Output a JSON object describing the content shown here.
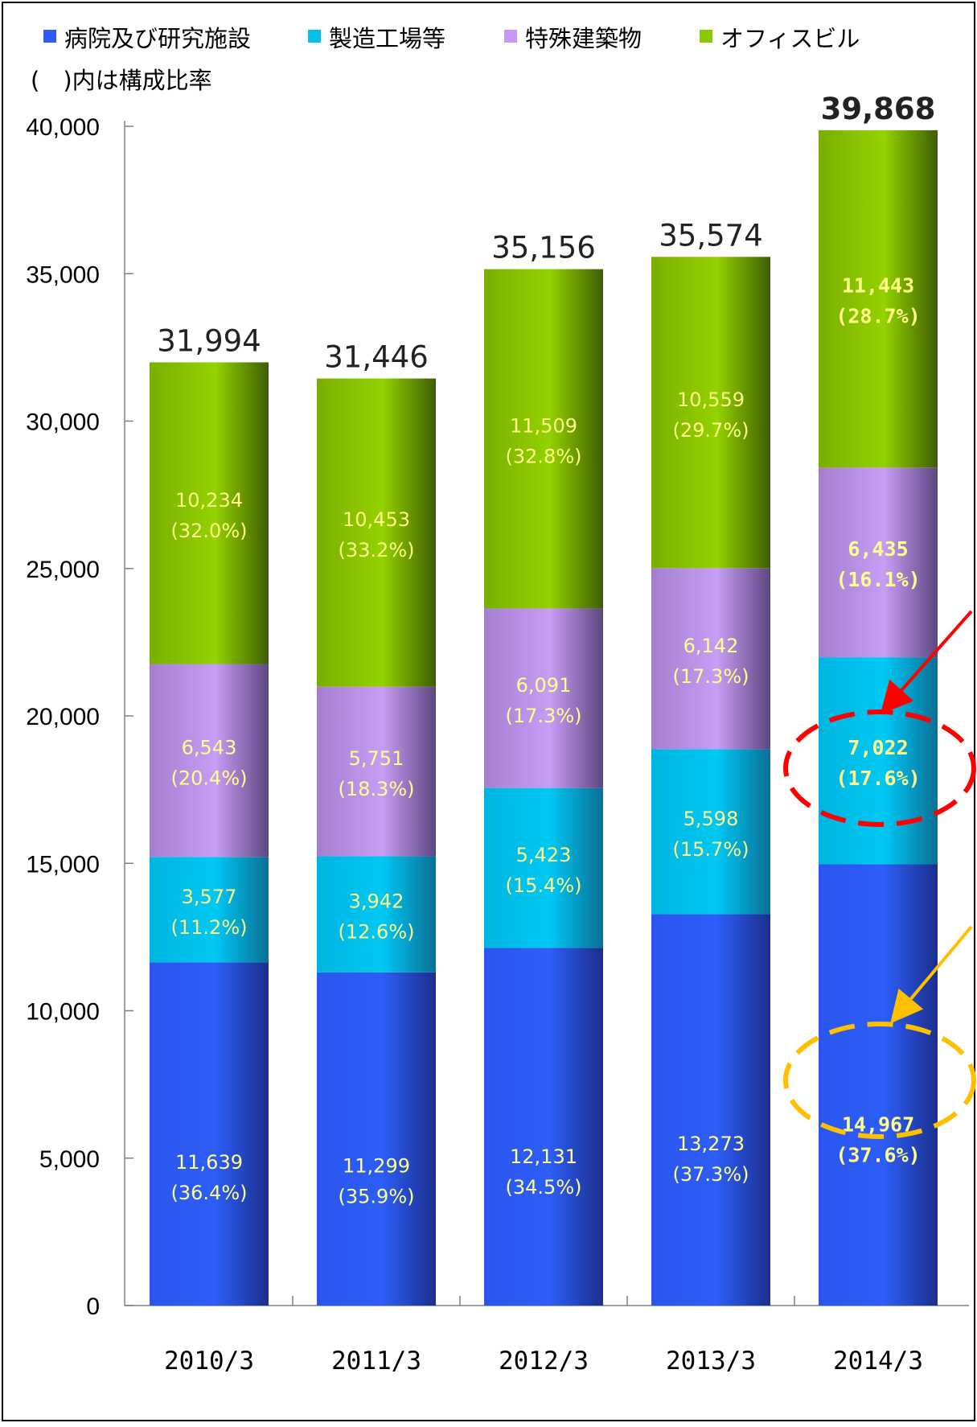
{
  "chart_data": {
    "type": "bar",
    "stacked": true,
    "categories": [
      "2010/3",
      "2011/3",
      "2012/3",
      "2013/3",
      "2014/3"
    ],
    "series": [
      {
        "name": "病院及び研究施設",
        "color": "#2f5cf0",
        "values": [
          11639,
          11299,
          12131,
          13273,
          14967
        ],
        "labels": [
          "(36.4%)",
          "(35.9%)",
          "(34.5%)",
          "(37.3%)",
          "(37.6%)"
        ]
      },
      {
        "name": "製造工場等",
        "color": "#00c0ec",
        "values": [
          3577,
          3942,
          5423,
          5598,
          7022
        ],
        "labels": [
          "(11.2%)",
          "(12.6%)",
          "(15.4%)",
          "(15.7%)",
          "(17.6%)"
        ]
      },
      {
        "name": "特殊建築物",
        "color": "#c599f2",
        "values": [
          6543,
          5751,
          6091,
          6142,
          6435
        ],
        "labels": [
          "(20.4%)",
          "(18.3%)",
          "(17.3%)",
          "(17.3%)",
          "(16.1%)"
        ]
      },
      {
        "name": "オフィスビル",
        "color": "#8cc800",
        "values": [
          10234,
          10453,
          11509,
          10559,
          11443
        ],
        "labels": [
          "(32.0%)",
          "(33.2%)",
          "(32.8%)",
          "(29.7%)",
          "(28.7%)"
        ]
      }
    ],
    "value_labels": [
      [
        "11,639",
        "11,299",
        "12,131",
        "13,273",
        "14,967"
      ],
      [
        "3,577",
        "3,942",
        "5,423",
        "5,598",
        "7,022"
      ],
      [
        "6,543",
        "5,751",
        "6,091",
        "6,142",
        "6,435"
      ],
      [
        "10,234",
        "10,453",
        "11,509",
        "10,559",
        "11,443"
      ]
    ],
    "totals": [
      "31,994",
      "31,446",
      "35,156",
      "35,574",
      "39,868"
    ],
    "subtitle": "(　)内は構成比率",
    "y_ticks": [
      "0",
      "5,000",
      "10,000",
      "15,000",
      "20,000",
      "25,000",
      "30,000",
      "35,000",
      "40,000"
    ],
    "ylim": [
      0,
      40000
    ],
    "legend_position": "top",
    "label_color": "#ffff8c",
    "highlight_colors": {
      "red": "#ff0000",
      "gold": "#ffc000"
    }
  }
}
